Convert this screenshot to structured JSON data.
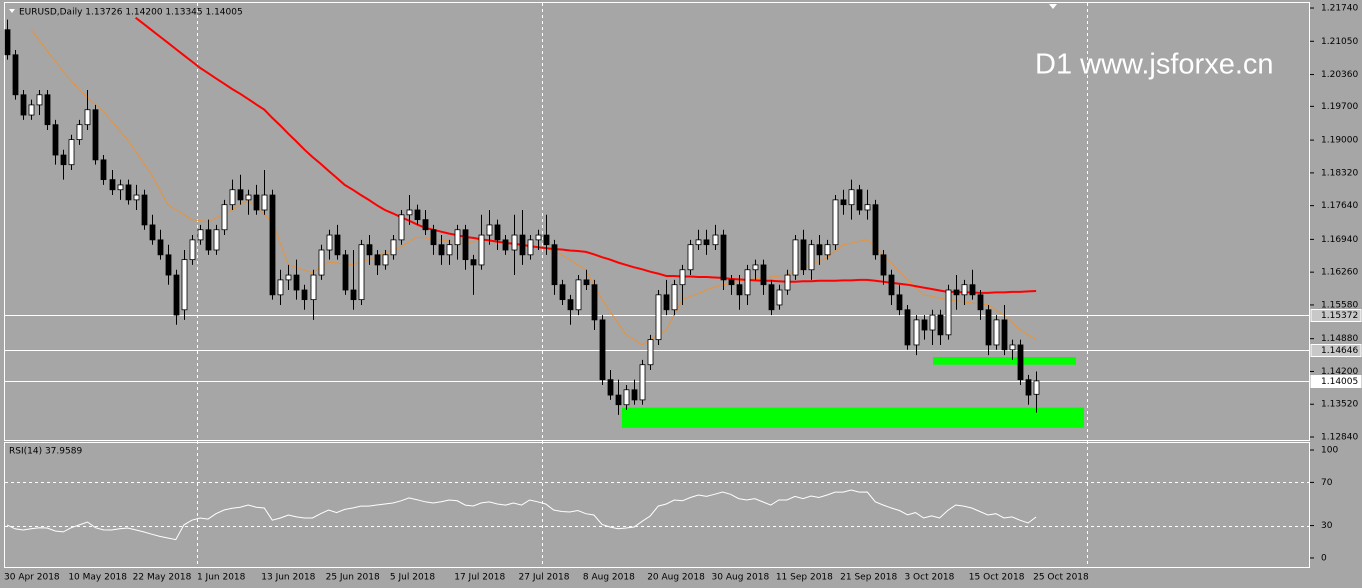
{
  "chart_data": {
    "type": "candlestick",
    "title": "EURUSD,Daily  1.13726 1.14200 1.13345 1.14005",
    "watermark": "D1 www.jsforxe.cn",
    "categories": [
      "30 Apr 2018",
      null,
      null,
      null,
      null,
      null,
      null,
      null,
      "10 May 2018",
      null,
      null,
      null,
      null,
      null,
      null,
      null,
      "22 May 2018",
      null,
      null,
      null,
      null,
      null,
      null,
      null,
      "1 Jun 2018",
      null,
      null,
      null,
      null,
      null,
      null,
      null,
      "13 Jun 2018",
      null,
      null,
      null,
      null,
      null,
      null,
      null,
      "25 Jun 2018",
      null,
      null,
      null,
      null,
      null,
      null,
      null,
      "5 Jul 2018",
      null,
      null,
      null,
      null,
      null,
      null,
      null,
      "17 Jul 2018",
      null,
      null,
      null,
      null,
      null,
      null,
      null,
      "27 Jul 2018",
      null,
      null,
      null,
      null,
      null,
      null,
      null,
      "8 Aug 2018",
      null,
      null,
      null,
      null,
      null,
      null,
      null,
      "20 Aug 2018",
      null,
      null,
      null,
      null,
      null,
      null,
      null,
      "30 Aug 2018",
      null,
      null,
      null,
      null,
      null,
      null,
      null,
      "11 Sep 2018",
      null,
      null,
      null,
      null,
      null,
      null,
      null,
      "21 Sep 2018",
      null,
      null,
      null,
      null,
      null,
      null,
      null,
      "3 Oct 2018",
      null,
      null,
      null,
      null,
      null,
      null,
      null,
      "15 Oct 2018",
      null,
      null,
      null,
      null,
      null,
      null,
      null,
      "25 Oct 2018"
    ],
    "open": [
      1.2129,
      1.2077,
      1.1994,
      1.1952,
      1.1973,
      1.1994,
      1.1932,
      1.1869,
      1.1849,
      1.1901,
      1.1932,
      1.1963,
      1.1859,
      1.1818,
      1.1797,
      1.1807,
      1.1776,
      1.1786,
      1.1724,
      1.1693,
      1.1662,
      1.162,
      1.1548,
      1.1652,
      1.1693,
      1.1714,
      1.1672,
      1.1714,
      1.1766,
      1.1797,
      1.1776,
      1.1786,
      1.1755,
      1.1786,
      1.1579,
      1.161,
      1.162,
      1.1589,
      1.1569,
      1.162,
      1.1672,
      1.1703,
      1.1662,
      1.1589,
      1.1569,
      1.1683,
      1.1662,
      1.1641,
      1.1662,
      1.1693,
      1.1745,
      1.1755,
      1.1735,
      1.1714,
      1.1683,
      1.1662,
      1.1683,
      1.1714,
      1.1652,
      1.1641,
      1.1703,
      1.1724,
      1.1693,
      1.1672,
      1.1703,
      1.1662,
      1.1693,
      1.1703,
      1.1683,
      1.16,
      1.1569,
      1.1548,
      1.161,
      1.16,
      1.1527,
      1.1403,
      1.1371,
      1.1351,
      1.1382,
      1.1361,
      1.1434,
      1.1486,
      1.1579,
      1.1548,
      1.16,
      1.1631,
      1.1683,
      1.1693,
      1.1683,
      1.1703,
      1.161,
      1.16,
      1.1579,
      1.1631,
      1.1641,
      1.16,
      1.1558,
      1.1589,
      1.162,
      1.1693,
      1.1631,
      1.1683,
      1.1662,
      1.1683,
      1.1776,
      1.1766,
      1.1797,
      1.1755,
      1.1766,
      1.1662,
      1.162,
      1.1579,
      1.1548,
      1.1475,
      1.1527,
      1.1506,
      1.1537,
      1.1496,
      1.1589,
      1.1579,
      1.16,
      1.1579,
      1.1548,
      1.1475,
      1.1527,
      1.1465,
      1.1475,
      1.1403,
      1.13726
    ],
    "high": [
      1.215,
      1.2087,
      1.2004,
      1.1984,
      1.2004,
      1.2004,
      1.1942,
      1.188,
      1.1911,
      1.1942,
      1.2004,
      1.1973,
      1.1869,
      1.1838,
      1.1818,
      1.1818,
      1.1807,
      1.1797,
      1.1745,
      1.1714,
      1.1683,
      1.1631,
      1.1672,
      1.1703,
      1.1724,
      1.1735,
      1.1724,
      1.1776,
      1.1818,
      1.1828,
      1.1797,
      1.1807,
      1.1838,
      1.1797,
      1.1631,
      1.1641,
      1.1652,
      1.16,
      1.1631,
      1.1683,
      1.1714,
      1.1724,
      1.1672,
      1.1672,
      1.1693,
      1.1703,
      1.1672,
      1.1672,
      1.1703,
      1.1755,
      1.1786,
      1.1766,
      1.1755,
      1.1724,
      1.1703,
      1.1693,
      1.1724,
      1.1724,
      1.1662,
      1.1745,
      1.1755,
      1.1735,
      1.1703,
      1.1745,
      1.1755,
      1.1703,
      1.1714,
      1.1745,
      1.1693,
      1.161,
      1.1579,
      1.162,
      1.1631,
      1.161,
      1.1537,
      1.1423,
      1.1403,
      1.1392,
      1.1403,
      1.1444,
      1.1496,
      1.1589,
      1.161,
      1.161,
      1.1641,
      1.1693,
      1.1714,
      1.1714,
      1.1724,
      1.1714,
      1.162,
      1.162,
      1.1641,
      1.1652,
      1.1652,
      1.161,
      1.16,
      1.1631,
      1.1703,
      1.1714,
      1.1693,
      1.1703,
      1.1693,
      1.1786,
      1.1797,
      1.1818,
      1.1807,
      1.1797,
      1.1776,
      1.1672,
      1.1631,
      1.16,
      1.1558,
      1.1537,
      1.1537,
      1.1548,
      1.1548,
      1.16,
      1.162,
      1.161,
      1.1631,
      1.1589,
      1.1558,
      1.1537,
      1.1558,
      1.1486,
      1.1486,
      1.1413,
      1.142
    ],
    "low": [
      1.2067,
      1.1984,
      1.1942,
      1.1942,
      1.1952,
      1.1921,
      1.1849,
      1.1818,
      1.1838,
      1.189,
      1.1921,
      1.1849,
      1.1807,
      1.1786,
      1.1776,
      1.1766,
      1.1755,
      1.1714,
      1.1683,
      1.1652,
      1.16,
      1.1517,
      1.1527,
      1.1641,
      1.1683,
      1.1662,
      1.1662,
      1.1703,
      1.1755,
      1.1766,
      1.1745,
      1.1745,
      1.1745,
      1.1569,
      1.1558,
      1.1589,
      1.1569,
      1.1548,
      1.1527,
      1.161,
      1.1652,
      1.1652,
      1.1579,
      1.1548,
      1.1558,
      1.1641,
      1.162,
      1.1631,
      1.1652,
      1.1683,
      1.1724,
      1.1724,
      1.1703,
      1.1662,
      1.1641,
      1.1641,
      1.1652,
      1.1631,
      1.1579,
      1.1631,
      1.1683,
      1.1672,
      1.1662,
      1.162,
      1.1641,
      1.1652,
      1.1672,
      1.1662,
      1.1579,
      1.1558,
      1.1517,
      1.1537,
      1.1589,
      1.1506,
      1.1392,
      1.1361,
      1.133,
      1.134,
      1.1351,
      1.1351,
      1.1423,
      1.1475,
      1.1537,
      1.1537,
      1.1558,
      1.162,
      1.1672,
      1.1662,
      1.1672,
      1.1589,
      1.1579,
      1.1548,
      1.1558,
      1.161,
      1.1579,
      1.1537,
      1.1548,
      1.1579,
      1.161,
      1.162,
      1.161,
      1.1641,
      1.1652,
      1.1672,
      1.1745,
      1.1735,
      1.1745,
      1.1735,
      1.1652,
      1.16,
      1.1558,
      1.1537,
      1.1465,
      1.1454,
      1.1486,
      1.1475,
      1.1475,
      1.1486,
      1.1548,
      1.1558,
      1.1569,
      1.1527,
      1.1454,
      1.1465,
      1.1454,
      1.1444,
      1.1392,
      1.1351,
      1.13345
    ],
    "close": [
      1.2077,
      1.1994,
      1.1952,
      1.1973,
      1.1994,
      1.1932,
      1.1869,
      1.1849,
      1.1901,
      1.1932,
      1.1963,
      1.1859,
      1.1818,
      1.1797,
      1.1807,
      1.1776,
      1.1786,
      1.1724,
      1.1693,
      1.1662,
      1.162,
      1.1537,
      1.1652,
      1.1693,
      1.1714,
      1.1672,
      1.1714,
      1.1766,
      1.1797,
      1.1776,
      1.1786,
      1.1755,
      1.1786,
      1.1579,
      1.161,
      1.162,
      1.1589,
      1.1569,
      1.162,
      1.1672,
      1.1703,
      1.1662,
      1.1589,
      1.1569,
      1.1683,
      1.1662,
      1.1641,
      1.1662,
      1.1693,
      1.1745,
      1.1755,
      1.1735,
      1.1714,
      1.1683,
      1.1662,
      1.1683,
      1.1714,
      1.1652,
      1.1641,
      1.1703,
      1.1724,
      1.1693,
      1.1672,
      1.1703,
      1.1662,
      1.1693,
      1.1703,
      1.1683,
      1.16,
      1.1569,
      1.1548,
      1.161,
      1.16,
      1.1527,
      1.1403,
      1.1371,
      1.1351,
      1.1382,
      1.1361,
      1.1434,
      1.1486,
      1.1579,
      1.1548,
      1.16,
      1.1631,
      1.1683,
      1.1693,
      1.1683,
      1.1703,
      1.161,
      1.16,
      1.1579,
      1.1631,
      1.1641,
      1.16,
      1.1548,
      1.1589,
      1.162,
      1.1693,
      1.1631,
      1.1683,
      1.1662,
      1.1683,
      1.1776,
      1.1766,
      1.1797,
      1.1755,
      1.1766,
      1.1662,
      1.162,
      1.1579,
      1.1548,
      1.1475,
      1.1527,
      1.1506,
      1.1537,
      1.1496,
      1.1589,
      1.1579,
      1.16,
      1.1579,
      1.1548,
      1.1475,
      1.1527,
      1.1465,
      1.1475,
      1.1403,
      1.1371,
      1.14005
    ],
    "up_color": "#ffffff",
    "down_color": "#000000",
    "lines": [
      {
        "color": "#e8923a",
        "values": [
          null,
          null,
          null,
          1.2129,
          1.2107,
          1.2085,
          1.2064,
          1.2042,
          1.2023,
          1.2004,
          1.1989,
          1.1974,
          1.1959,
          1.194,
          1.192,
          1.1901,
          1.1877,
          1.1852,
          1.1828,
          1.1797,
          1.1766,
          1.1756,
          1.1745,
          1.1735,
          1.1733,
          1.173,
          1.1738,
          1.1747,
          1.1755,
          1.1766,
          1.1776,
          1.1761,
          1.1745,
          1.173,
          1.1686,
          1.1641,
          1.1636,
          1.163,
          1.1625,
          1.1636,
          1.1647,
          1.1645,
          1.1643,
          1.1641,
          1.1647,
          1.1652,
          1.1659,
          1.1665,
          1.1672,
          1.1678,
          1.1689,
          1.1699,
          1.1697,
          1.1695,
          1.1693,
          1.169,
          1.1688,
          1.1685,
          1.1689,
          1.1693,
          1.169,
          1.1688,
          1.1685,
          1.1685,
          1.1685,
          1.1682,
          1.1679,
          1.1676,
          1.1669,
          1.1662,
          1.1652,
          1.1641,
          1.1631,
          1.16,
          1.1569,
          1.1545,
          1.152,
          1.1496,
          1.1486,
          1.1475,
          1.1485,
          1.1496,
          1.1506,
          1.1538,
          1.1569,
          1.1576,
          1.1582,
          1.1589,
          1.1595,
          1.16,
          1.1603,
          1.1607,
          1.161,
          1.1612,
          1.1614,
          1.1616,
          1.1618,
          1.162,
          1.1628,
          1.1635,
          1.1642,
          1.1649,
          1.1656,
          1.167,
          1.1683,
          1.1686,
          1.169,
          1.1693,
          1.1678,
          1.1662,
          1.1645,
          1.1627,
          1.161,
          1.1595,
          1.1579,
          1.1576,
          1.1572,
          1.1569,
          1.1567,
          1.1564,
          1.1562,
          1.156,
          1.1558,
          1.1548,
          1.1537,
          1.1522,
          1.1506,
          1.1496,
          1.1486
        ]
      },
      {
        "color": "#ff0000",
        "values": [
          null,
          null,
          null,
          null,
          null,
          null,
          null,
          null,
          null,
          null,
          null,
          null,
          null,
          null,
          null,
          null,
          1.2154,
          1.2141,
          1.2128,
          1.2115,
          1.2102,
          1.2089,
          1.2076,
          1.2063,
          1.205,
          1.2039,
          1.2028,
          1.2017,
          1.2006,
          1.1996,
          1.1985,
          1.1974,
          1.1963,
          1.1946,
          1.193,
          1.1913,
          1.1897,
          1.188,
          1.1865,
          1.1851,
          1.1836,
          1.1822,
          1.1807,
          1.1797,
          1.1786,
          1.1776,
          1.1765,
          1.1755,
          1.1748,
          1.174,
          1.1733,
          1.1725,
          1.1718,
          1.1714,
          1.171,
          1.1706,
          1.1703,
          1.1699,
          1.1697,
          1.1694,
          1.1692,
          1.1689,
          1.1687,
          1.1685,
          1.1683,
          1.168,
          1.1678,
          1.1676,
          1.1674,
          1.1673,
          1.1671,
          1.167,
          1.1668,
          1.1663,
          1.1657,
          1.1652,
          1.1646,
          1.1641,
          1.1636,
          1.1632,
          1.1627,
          1.1623,
          1.1618,
          1.1618,
          1.1617,
          1.1617,
          1.1616,
          1.1616,
          1.1615,
          1.1614,
          1.1612,
          1.1611,
          1.161,
          1.1609,
          1.1608,
          1.1608,
          1.1607,
          1.1606,
          1.1606,
          1.1607,
          1.1607,
          1.1608,
          1.1608,
          1.1608,
          1.1609,
          1.1609,
          1.161,
          1.161,
          1.1608,
          1.1606,
          1.1604,
          1.1602,
          1.16,
          1.1597,
          1.1594,
          1.1591,
          1.1588,
          1.1585,
          1.1585,
          1.1584,
          1.1584,
          1.1583,
          1.1583,
          1.1584,
          1.1584,
          1.1585,
          1.1585,
          1.1586,
          1.1587
        ]
      }
    ],
    "ylim": [
      1.12778,
      1.21865
    ],
    "yticks": [
      {
        "value": 1.2174,
        "label": "1.21740"
      },
      {
        "value": 1.2105,
        "label": "1.21050"
      },
      {
        "value": 1.2036,
        "label": "1.20360"
      },
      {
        "value": 1.197,
        "label": "1.19700"
      },
      {
        "value": 1.19,
        "label": "1.19000"
      },
      {
        "value": 1.1832,
        "label": "1.18320"
      },
      {
        "value": 1.1764,
        "label": "1.17640"
      },
      {
        "value": 1.1694,
        "label": "1.16940"
      },
      {
        "value": 1.1626,
        "label": "1.16260"
      },
      {
        "value": 1.1558,
        "label": "1.15580"
      },
      {
        "value": 1.1488,
        "label": "1.14880"
      },
      {
        "value": 1.142,
        "label": "1.14200"
      },
      {
        "value": 1.1352,
        "label": "1.13520"
      },
      {
        "value": 1.1284,
        "label": "1.12840"
      }
    ],
    "hlines": [
      {
        "value": 1.15372,
        "label": "1.15372"
      },
      {
        "value": 1.14646,
        "label": "1.14646"
      },
      {
        "value": 1.14005,
        "label": "1.14005"
      }
    ],
    "zones": [
      {
        "from": 1.1303,
        "to": 1.1345,
        "color": "#00ff00"
      },
      {
        "from": 1.1434,
        "to": 1.145,
        "color": "#00ff00"
      }
    ],
    "rsi": {
      "type": "line",
      "title": "RSI(14) 37.9589",
      "color": "#ffffff",
      "values": [
        30.6,
        27,
        25.9,
        27,
        28,
        27.8,
        25,
        24.1,
        28,
        30.6,
        33.3,
        28,
        26,
        25.9,
        27,
        27.8,
        26,
        24.1,
        22,
        20,
        18.5,
        17,
        30.6,
        35,
        37,
        36,
        41,
        44.4,
        46,
        47,
        49.1,
        47,
        46.3,
        35,
        37,
        39.8,
        38,
        37,
        37,
        41,
        44.4,
        42,
        45,
        46.3,
        48,
        48,
        49.1,
        50,
        50.9,
        53,
        55.6,
        54,
        52,
        50.9,
        52,
        53.7,
        53,
        49,
        48.1,
        51,
        51.9,
        50,
        49,
        50.9,
        49,
        53.7,
        52,
        50,
        44.4,
        43,
        42.6,
        44,
        41,
        39.8,
        31,
        28.7,
        27,
        27.8,
        28.7,
        34,
        38.9,
        48,
        50,
        53.7,
        53,
        56,
        58.3,
        57,
        59,
        61.1,
        59,
        55,
        53.7,
        55,
        51.9,
        49,
        53.7,
        53.7,
        57,
        55,
        57.4,
        56,
        58.3,
        61,
        61,
        63,
        61,
        61.1,
        52,
        49,
        46.3,
        44,
        40,
        42,
        37,
        39,
        37,
        44,
        49.1,
        48,
        46.3,
        43,
        39.8,
        41,
        37,
        38,
        35,
        32.4,
        37.9589
      ],
      "ylim": [
        -9.3,
        106.5
      ],
      "yticks": [
        100,
        70,
        30,
        0
      ],
      "levels": [
        70,
        30
      ]
    }
  }
}
